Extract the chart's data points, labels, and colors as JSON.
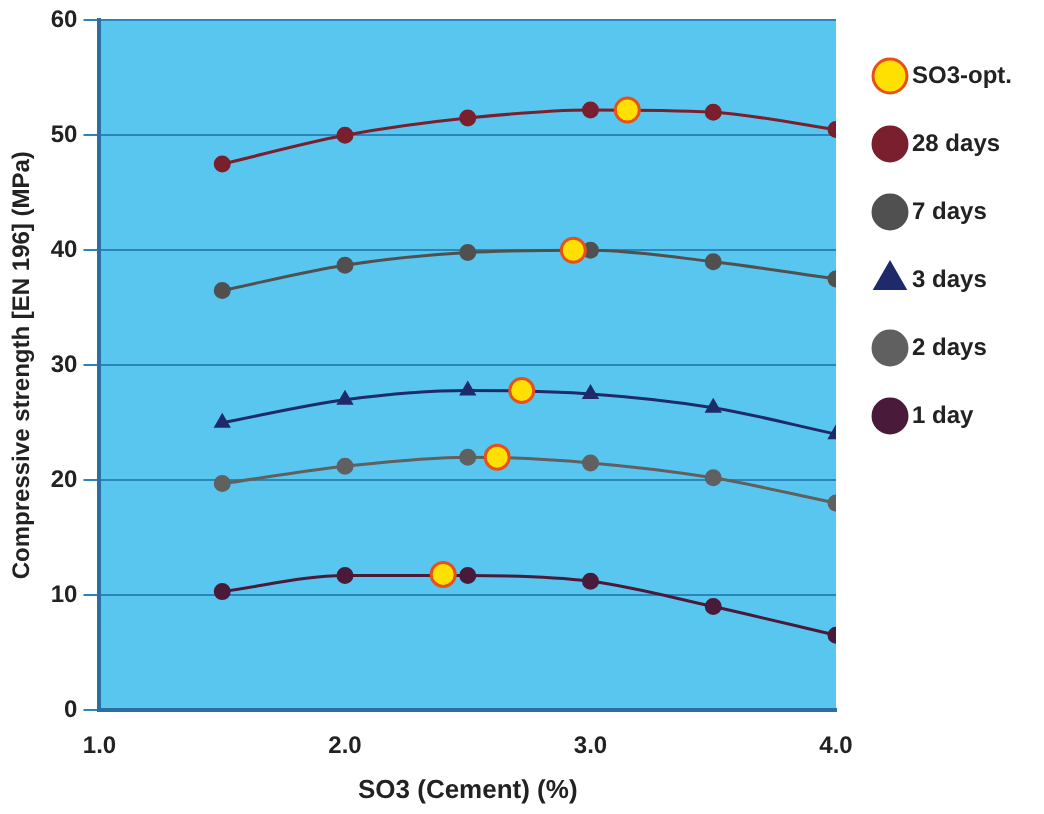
{
  "chart_data": {
    "type": "line",
    "xlabel": "SO3 (Cement) (%)",
    "ylabel": "Compressive strength [EN 196] (MPa)",
    "x": [
      1.5,
      2.0,
      2.5,
      3.0,
      3.5,
      4.0
    ],
    "series": [
      {
        "name": "SO3-opt.",
        "type": "scatter",
        "color": "#ffe000",
        "x": [
          3.15,
          2.93,
          2.72,
          2.62,
          2.4
        ],
        "values": [
          52.2,
          40,
          27.8,
          22,
          11.8
        ]
      },
      {
        "name": "28 days",
        "color": "#7a1f2e",
        "marker": "circle",
        "values": [
          47.5,
          50,
          51.5,
          52.2,
          52,
          50.5
        ]
      },
      {
        "name": "7 days",
        "color": "#505050",
        "marker": "circle",
        "values": [
          36.5,
          38.7,
          39.8,
          40,
          39,
          37.5
        ]
      },
      {
        "name": "3 days",
        "color": "#1f2a6b",
        "marker": "triangle",
        "values": [
          25,
          27,
          27.8,
          27.5,
          26.3,
          24
        ]
      },
      {
        "name": "2 days",
        "color": "#606060",
        "marker": "circle",
        "values": [
          19.7,
          21.2,
          22,
          21.5,
          20.2,
          18
        ]
      },
      {
        "name": "1 day",
        "color": "#4a1a3a",
        "marker": "circle",
        "values": [
          10.3,
          11.7,
          11.7,
          11.2,
          9,
          6.5
        ]
      }
    ],
    "xlim": [
      1.0,
      4.0
    ],
    "xticks": [
      {
        "value": 1,
        "label": "1.0"
      },
      {
        "value": 2,
        "label": "2.0"
      },
      {
        "value": 3,
        "label": "3.0"
      },
      {
        "value": 4,
        "label": "4.0"
      }
    ],
    "ylim": [
      0,
      60
    ],
    "yticks": [
      0,
      10,
      20,
      30,
      40,
      50,
      60
    ],
    "grid": "y",
    "legend": "right"
  }
}
